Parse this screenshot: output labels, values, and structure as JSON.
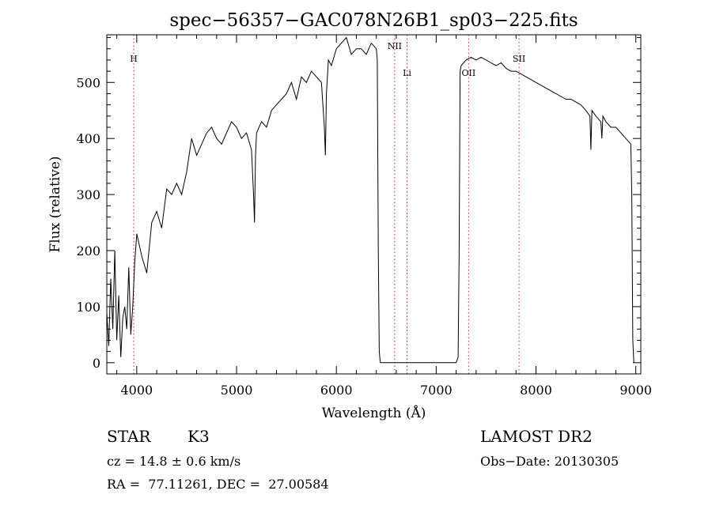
{
  "chart_data": {
    "type": "line",
    "title": "spec−56357−GAC078N26B1_sp03−225.fits",
    "xlabel": "Wavelength (Å)",
    "ylabel": "Flux (relative)",
    "xlim": [
      3700,
      9050
    ],
    "ylim": [
      -20,
      585
    ],
    "x_ticks": [
      4000,
      5000,
      6000,
      7000,
      8000,
      9000
    ],
    "y_ticks": [
      0,
      100,
      200,
      300,
      400,
      500
    ],
    "grid": false,
    "series": [
      {
        "color": "#000000",
        "x": [
          3700,
          3720,
          3740,
          3760,
          3780,
          3800,
          3820,
          3840,
          3860,
          3880,
          3900,
          3920,
          3940,
          3960,
          3980,
          4000,
          4050,
          4100,
          4150,
          4200,
          4250,
          4300,
          4350,
          4400,
          4450,
          4500,
          4550,
          4600,
          4650,
          4700,
          4750,
          4800,
          4850,
          4900,
          4950,
          5000,
          5050,
          5100,
          5150,
          5170,
          5180,
          5190,
          5200,
          5250,
          5300,
          5350,
          5400,
          5450,
          5500,
          5550,
          5600,
          5650,
          5700,
          5750,
          5800,
          5850,
          5880,
          5890,
          5900,
          5920,
          5950,
          6000,
          6050,
          6100,
          6150,
          6200,
          6250,
          6300,
          6350,
          6400,
          6410,
          6420,
          6430,
          6440,
          6500,
          6600,
          6700,
          6800,
          6900,
          7000,
          7100,
          7200,
          7220,
          7230,
          7240,
          7250,
          7300,
          7350,
          7400,
          7450,
          7500,
          7550,
          7600,
          7650,
          7700,
          7750,
          7800,
          7850,
          7900,
          7950,
          8000,
          8050,
          8100,
          8150,
          8200,
          8250,
          8300,
          8350,
          8400,
          8450,
          8500,
          8540,
          8550,
          8560,
          8600,
          8650,
          8660,
          8670,
          8700,
          8750,
          8800,
          8850,
          8900,
          8950,
          8960,
          8970,
          8980
        ],
        "values": [
          90,
          30,
          150,
          60,
          200,
          40,
          120,
          10,
          80,
          100,
          60,
          170,
          50,
          100,
          180,
          230,
          190,
          160,
          250,
          270,
          240,
          310,
          300,
          320,
          300,
          340,
          400,
          370,
          390,
          410,
          420,
          400,
          390,
          410,
          430,
          420,
          400,
          410,
          380,
          300,
          250,
          370,
          410,
          430,
          420,
          450,
          460,
          470,
          480,
          500,
          470,
          510,
          500,
          520,
          510,
          500,
          420,
          370,
          480,
          540,
          530,
          560,
          570,
          580,
          550,
          560,
          560,
          550,
          570,
          560,
          540,
          200,
          20,
          0,
          0,
          0,
          0,
          0,
          0,
          0,
          0,
          0,
          10,
          200,
          520,
          530,
          540,
          545,
          540,
          545,
          540,
          535,
          530,
          535,
          525,
          520,
          520,
          515,
          510,
          505,
          500,
          495,
          490,
          485,
          480,
          475,
          470,
          470,
          465,
          460,
          450,
          440,
          380,
          450,
          440,
          430,
          400,
          440,
          430,
          420,
          420,
          410,
          400,
          390,
          300,
          40,
          0
        ]
      }
    ],
    "line_markers": [
      {
        "label": "H",
        "x": 3970
      },
      {
        "label": "NII",
        "x": 6584
      },
      {
        "label": "Li",
        "x": 6708
      },
      {
        "label": "OII",
        "x": 7325
      },
      {
        "label": "SII",
        "x": 7830
      }
    ],
    "marker_color": "#cc2222"
  },
  "info": {
    "object_class": "STAR",
    "subclass": "K3",
    "survey": "LAMOST DR2",
    "cz": "cz = 14.8 ± 0.6 km/s",
    "obs_date": "Obs−Date: 20130305",
    "coords": "RA =  77.11261, DEC =  27.00584"
  }
}
